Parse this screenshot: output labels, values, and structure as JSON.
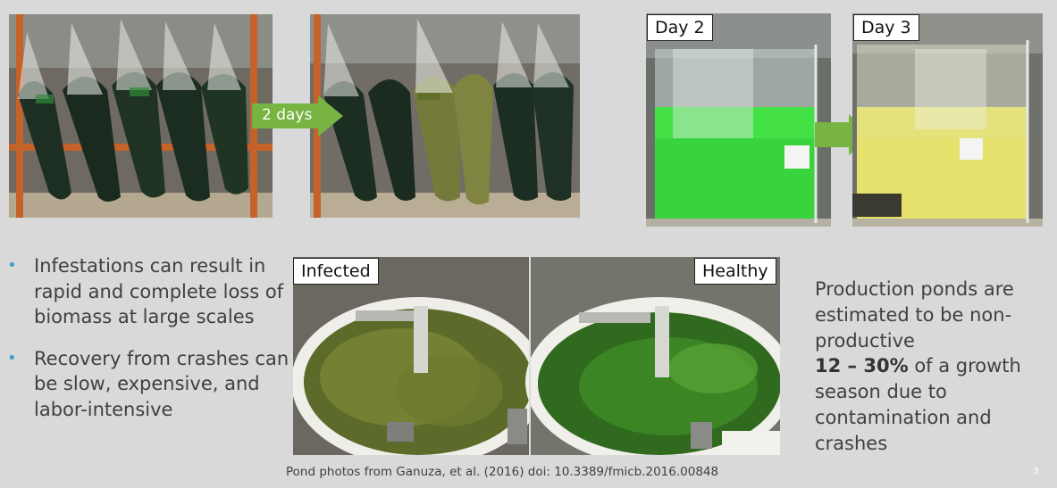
{
  "arrows": {
    "bags_label": "2 days"
  },
  "panels": {
    "day2_label": "Day 2",
    "day3_label": "Day 3",
    "infected_label": "Infected",
    "healthy_label": "Healthy"
  },
  "bullets": [
    "Infestations can result in rapid and complete loss of biomass at large scales",
    "Recovery from crashes can be slow, expensive, and labor-intensive"
  ],
  "production_text": {
    "line1": "Production ponds are estimated to be non-productive",
    "highlight": "12 – 30%",
    "line2": "of a growth season due to contamination and crashes"
  },
  "citation": "Pond photos from Ganuza, et al. (2016) doi: 10.3389/fmicb.2016.00848",
  "page_number": "3",
  "colors": {
    "background": "#d9d9d9",
    "arrow_green": "#77b442",
    "bullet_blue": "#3aa3c9",
    "text": "#404040"
  }
}
